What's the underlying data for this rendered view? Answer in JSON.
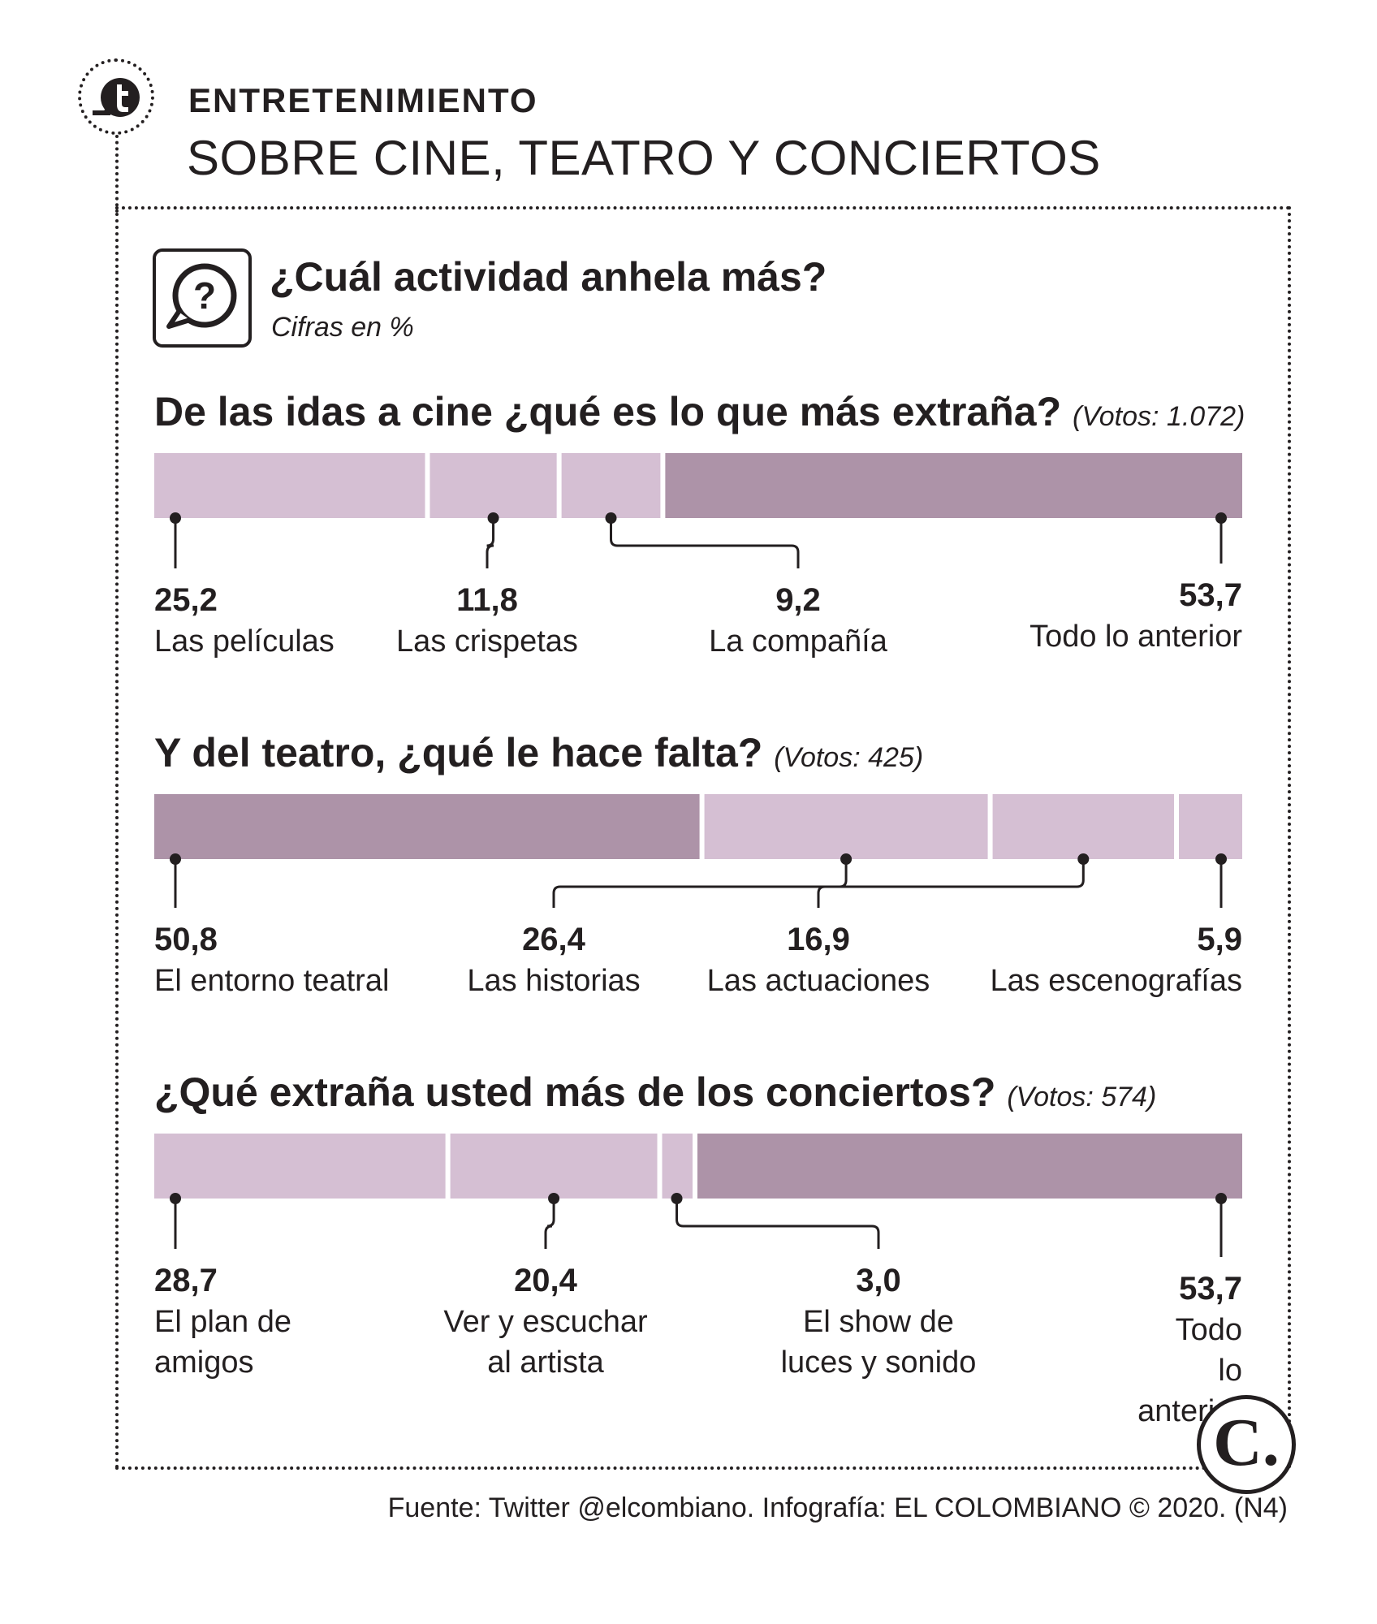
{
  "header": {
    "section_label": "ENTRETENIMIENTO",
    "title": "SOBRE CINE, TEATRO Y CONCIERTOS"
  },
  "question": {
    "title": "¿Cuál actividad anhela más?",
    "subtitle": "Cifras en %"
  },
  "colors": {
    "dark": "#ad93a8",
    "light": "#d5bfd3",
    "ink": "#231f20"
  },
  "chart_data": [
    {
      "type": "bar",
      "stacked": true,
      "title": "De las idas a cine ¿qué es lo que más extraña?",
      "votes": "(Votos: 1.072)",
      "categories": [
        "Las películas",
        "Las crispetas",
        "La compañía",
        "Todo lo anterior"
      ],
      "values": [
        25.2,
        11.8,
        9.2,
        53.7
      ],
      "value_labels": [
        "25,2",
        "11,8",
        "9,2",
        "53,7"
      ],
      "highlight": 3,
      "unit": "%"
    },
    {
      "type": "bar",
      "stacked": true,
      "title": "Y del teatro, ¿qué le hace falta?",
      "votes": "(Votos: 425)",
      "categories": [
        "El entorno teatral",
        "Las historias",
        "Las actuaciones",
        "Las escenografías"
      ],
      "values": [
        50.8,
        26.4,
        16.9,
        5.9
      ],
      "value_labels": [
        "50,8",
        "26,4",
        "16,9",
        "5,9"
      ],
      "highlight": 0,
      "unit": "%"
    },
    {
      "type": "bar",
      "stacked": true,
      "title": "¿Qué extraña usted más de los conciertos?",
      "votes": "(Votos: 574)",
      "categories": [
        "El plan de amigos",
        "Ver y escuchar al artista",
        "El show de luces y sonido",
        "Todo lo anterior"
      ],
      "values": [
        28.7,
        20.4,
        3.0,
        53.7
      ],
      "value_labels": [
        "28,7",
        "20,4",
        "3,0",
        "53,7"
      ],
      "highlight": 3,
      "unit": "%"
    }
  ],
  "logo": {
    "letter": "C."
  },
  "footer": "Fuente: Twitter @elcombiano. Infografía: EL COLOMBIANO © 2020. (N4)"
}
